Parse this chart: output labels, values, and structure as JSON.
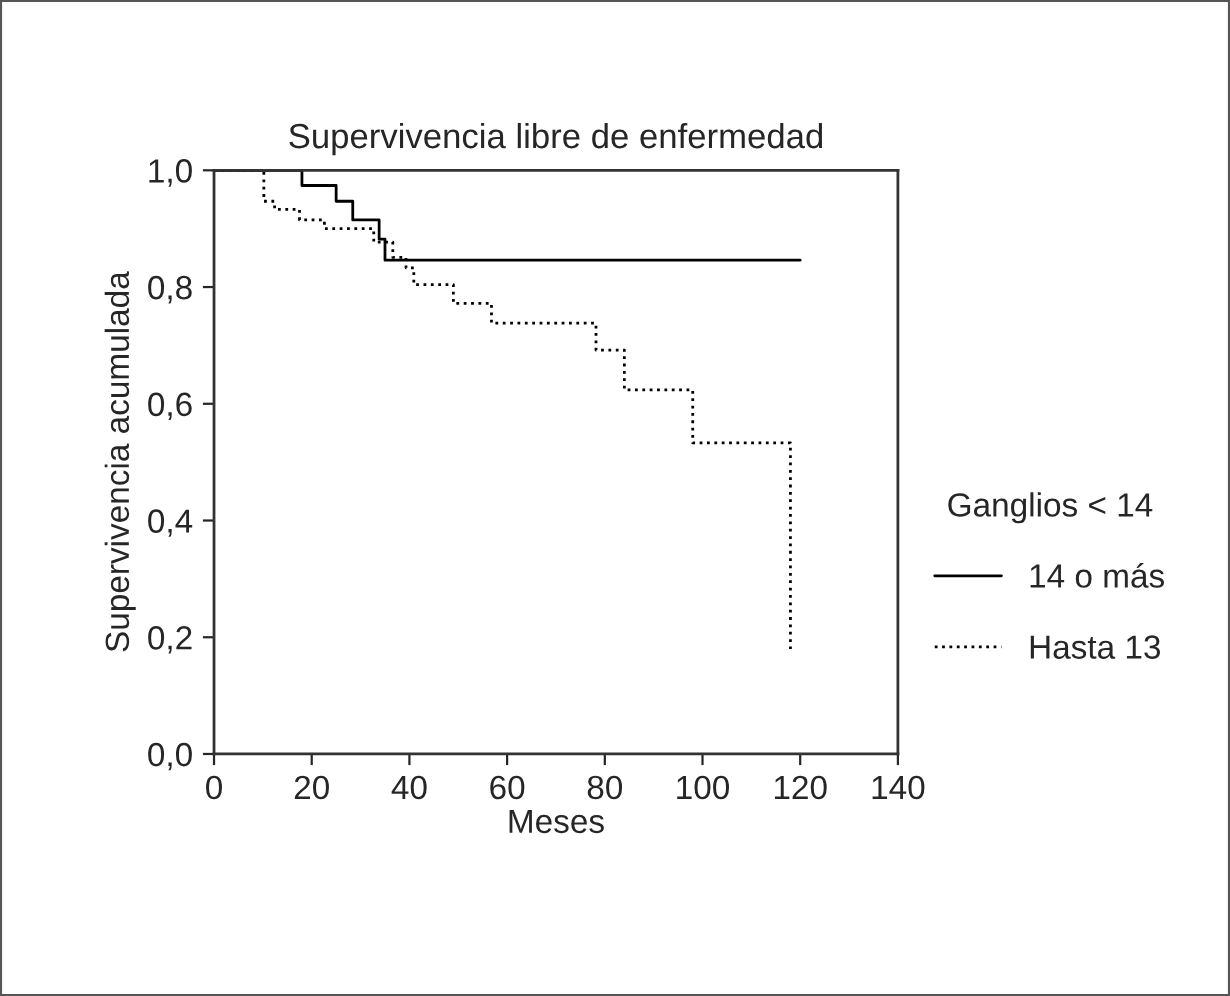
{
  "chart_data": {
    "type": "step",
    "title": "Supervivencia libre de enfermedad",
    "xlabel": "Meses",
    "ylabel": "Supervivencia acumulada",
    "legend_title": "Ganglios < 14",
    "legend": "right",
    "grid": false,
    "xlim": [
      0,
      140
    ],
    "xticks": [
      0,
      20,
      40,
      60,
      80,
      100,
      120,
      140
    ],
    "ylim": [
      0,
      1
    ],
    "yticks": [
      {
        "value": 0,
        "label": "0,0"
      },
      {
        "value": 0.2,
        "label": "0,2"
      },
      {
        "value": 0.4,
        "label": "0,4"
      },
      {
        "value": 0.6,
        "label": "0,6"
      },
      {
        "value": 0.8,
        "label": "0,8"
      },
      {
        "value": 1,
        "label": "1,0"
      }
    ],
    "series": [
      {
        "name": "14 o más",
        "color": "#000000",
        "line_style": "solid",
        "x": [
          0,
          18,
          25,
          28.4,
          33.8,
          35,
          120
        ],
        "values": [
          1,
          0.974,
          0.947,
          0.915,
          0.882,
          0.846,
          0.846
        ]
      },
      {
        "name": "Hasta 13",
        "color": "#000000",
        "line_style": "dotted",
        "x": [
          0,
          10.2,
          12.4,
          17.5,
          22.6,
          32.7,
          36.6,
          39.3,
          40.9,
          49,
          56.8,
          78.2,
          84,
          98,
          118
        ],
        "values": [
          1,
          0.947,
          0.933,
          0.915,
          0.9,
          0.877,
          0.851,
          0.833,
          0.804,
          0.772,
          0.738,
          0.692,
          0.624,
          0.533,
          0.18
        ]
      }
    ]
  }
}
